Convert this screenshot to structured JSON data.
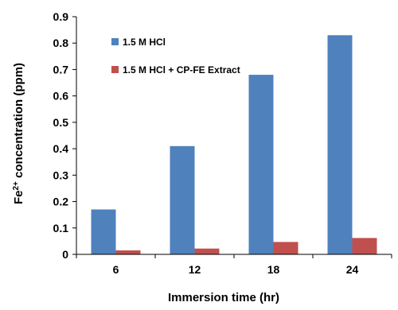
{
  "chart_data": {
    "type": "bar",
    "categories": [
      "6",
      "12",
      "18",
      "24"
    ],
    "series": [
      {
        "name": "1.5 M HCl",
        "color": "#4F81BD",
        "values": [
          0.17,
          0.41,
          0.68,
          0.83
        ]
      },
      {
        "name": "1.5 M HCl + CP-FE Extract",
        "color": "#C0504D",
        "values": [
          0.015,
          0.022,
          0.047,
          0.062
        ]
      }
    ],
    "xlabel": "Immersion time (hr)",
    "ylabel": {
      "prefix": "Fe",
      "superscript": "2+",
      "suffix": " concentration (ppm)"
    },
    "ylim": [
      0,
      0.9
    ],
    "yticks": [
      "0",
      "0.1",
      "0.2",
      "0.3",
      "0.4",
      "0.5",
      "0.6",
      "0.7",
      "0.8",
      "0.9"
    ],
    "grid": false,
    "legend_position": "top-left"
  }
}
